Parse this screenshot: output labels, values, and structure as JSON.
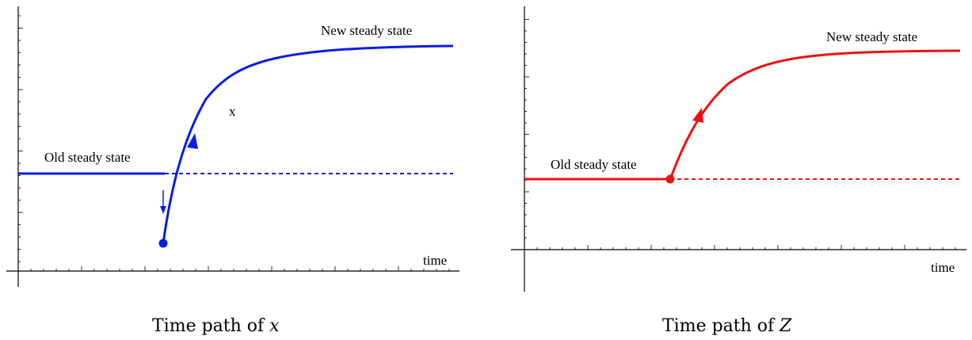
{
  "colors": {
    "left_path": "#0a1ee0",
    "right_path": "#ee1111",
    "axis": "#000000"
  },
  "panels": [
    {
      "axis_label": "time",
      "curve_label": "x",
      "old_label": "Old steady state",
      "new_label": "New steady state",
      "caption_prefix": "Time path of ",
      "caption_var": "x"
    },
    {
      "axis_label": "time",
      "old_label": "Old steady state",
      "new_label": "New steady state",
      "caption_prefix": "Time path of ",
      "caption_var": "Z"
    }
  ]
}
